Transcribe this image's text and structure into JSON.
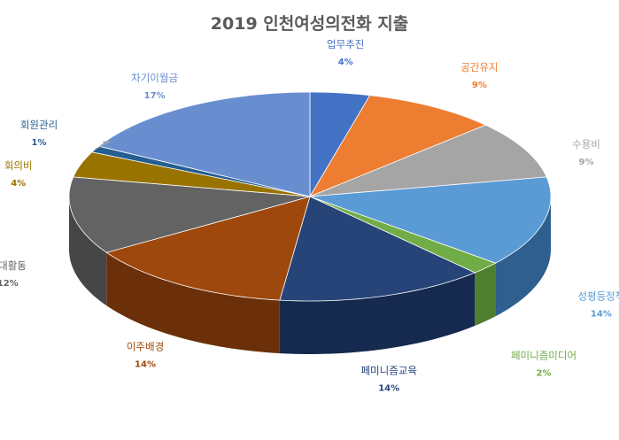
{
  "chart_data": {
    "type": "pie",
    "title": "2019 인천여성의전화 지출",
    "slices": [
      {
        "label": "업무추진",
        "value": 4,
        "pct_label": "4%",
        "color": "#4472c4",
        "side": "#2f528f"
      },
      {
        "label": "공간유지",
        "value": 9,
        "pct_label": "9%",
        "color": "#ed7d31",
        "side": "#ae5a21"
      },
      {
        "label": "수용비",
        "value": 9,
        "pct_label": "9%",
        "color": "#a5a5a5",
        "side": "#7b7b7b"
      },
      {
        "label": "성평등정책",
        "value": 14,
        "pct_label": "14%",
        "color": "#5b9bd5",
        "side": "#2e5f8e"
      },
      {
        "label": "페미니즘미디어",
        "value": 2,
        "pct_label": "2%",
        "color": "#70ad47",
        "side": "#4e7f31"
      },
      {
        "label": "페미니즘교육",
        "value": 14,
        "pct_label": "14%",
        "color": "#264478",
        "side": "#152a4e"
      },
      {
        "label": "이주배경",
        "value": 14,
        "pct_label": "14%",
        "color": "#9e480e",
        "side": "#6b3009"
      },
      {
        "label": "연대활동",
        "value": 12,
        "pct_label": "12%",
        "color": "#636363",
        "side": "#464646"
      },
      {
        "label": "회의비",
        "value": 4,
        "pct_label": "4%",
        "color": "#997300",
        "side": "#6b5000"
      },
      {
        "label": "회원관리",
        "value": 1,
        "pct_label": "1%",
        "color": "#255e91",
        "side": "#173d5f"
      },
      {
        "label": "차기이월금",
        "value": 17,
        "pct_label": "17%",
        "color": "#698ed0",
        "side": "#46649a"
      }
    ],
    "label_colors": {
      "업무추진": "#4472c4",
      "공간유지": "#ed7d31",
      "수용비": "#a5a5a5",
      "성평등정책": "#5b9bd5",
      "페미니즘미디어": "#70ad47",
      "페미니즘교육": "#264478",
      "이주배경": "#9e480e",
      "연대활동": "#636363",
      "회의비": "#997300",
      "회원관리": "#255e91",
      "차기이월금": "#698ed0"
    },
    "legend": "none",
    "start_angle": "12 o'clock, clockwise"
  }
}
